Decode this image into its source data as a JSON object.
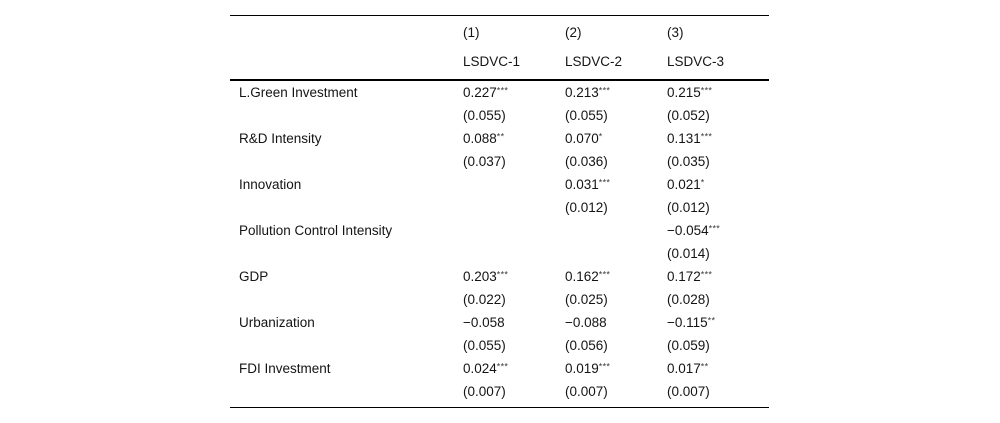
{
  "table": {
    "header": {
      "numbers": [
        "(1)",
        "(2)",
        "(3)"
      ],
      "models": [
        "LSDVC-1",
        "LSDVC-2",
        "LSDVC-3"
      ]
    },
    "rows": [
      {
        "label": "L.Green Investment",
        "cells": [
          {
            "coef": "0.227",
            "stars": "***",
            "se": "(0.055)"
          },
          {
            "coef": "0.213",
            "stars": "***",
            "se": "(0.055)"
          },
          {
            "coef": "0.215",
            "stars": "***",
            "se": "(0.052)"
          }
        ]
      },
      {
        "label": "R&D Intensity",
        "cells": [
          {
            "coef": "0.088",
            "stars": "**",
            "se": "(0.037)"
          },
          {
            "coef": "0.070",
            "stars": "*",
            "se": "(0.036)"
          },
          {
            "coef": "0.131",
            "stars": "***",
            "se": "(0.035)"
          }
        ]
      },
      {
        "label": "Innovation",
        "cells": [
          {
            "coef": "",
            "stars": "",
            "se": ""
          },
          {
            "coef": "0.031",
            "stars": "***",
            "se": "(0.012)"
          },
          {
            "coef": "0.021",
            "stars": "*",
            "se": "(0.012)"
          }
        ]
      },
      {
        "label": "Pollution Control Intensity",
        "cells": [
          {
            "coef": "",
            "stars": "",
            "se": ""
          },
          {
            "coef": "",
            "stars": "",
            "se": ""
          },
          {
            "coef": "−0.054",
            "stars": "***",
            "se": "(0.014)"
          }
        ]
      },
      {
        "label": "GDP",
        "cells": [
          {
            "coef": "0.203",
            "stars": "***",
            "se": "(0.022)"
          },
          {
            "coef": "0.162",
            "stars": "***",
            "se": "(0.025)"
          },
          {
            "coef": "0.172",
            "stars": "***",
            "se": "(0.028)"
          }
        ]
      },
      {
        "label": "Urbanization",
        "cells": [
          {
            "coef": "−0.058",
            "stars": "",
            "se": "(0.055)"
          },
          {
            "coef": "−0.088",
            "stars": "",
            "se": "(0.056)"
          },
          {
            "coef": "−0.115",
            "stars": "**",
            "se": "(0.059)"
          }
        ]
      },
      {
        "label": "FDI Investment",
        "cells": [
          {
            "coef": "0.024",
            "stars": "***",
            "se": "(0.007)"
          },
          {
            "coef": "0.019",
            "stars": "***",
            "se": "(0.007)"
          },
          {
            "coef": "0.017",
            "stars": "**",
            "se": "(0.007)"
          }
        ]
      }
    ]
  }
}
